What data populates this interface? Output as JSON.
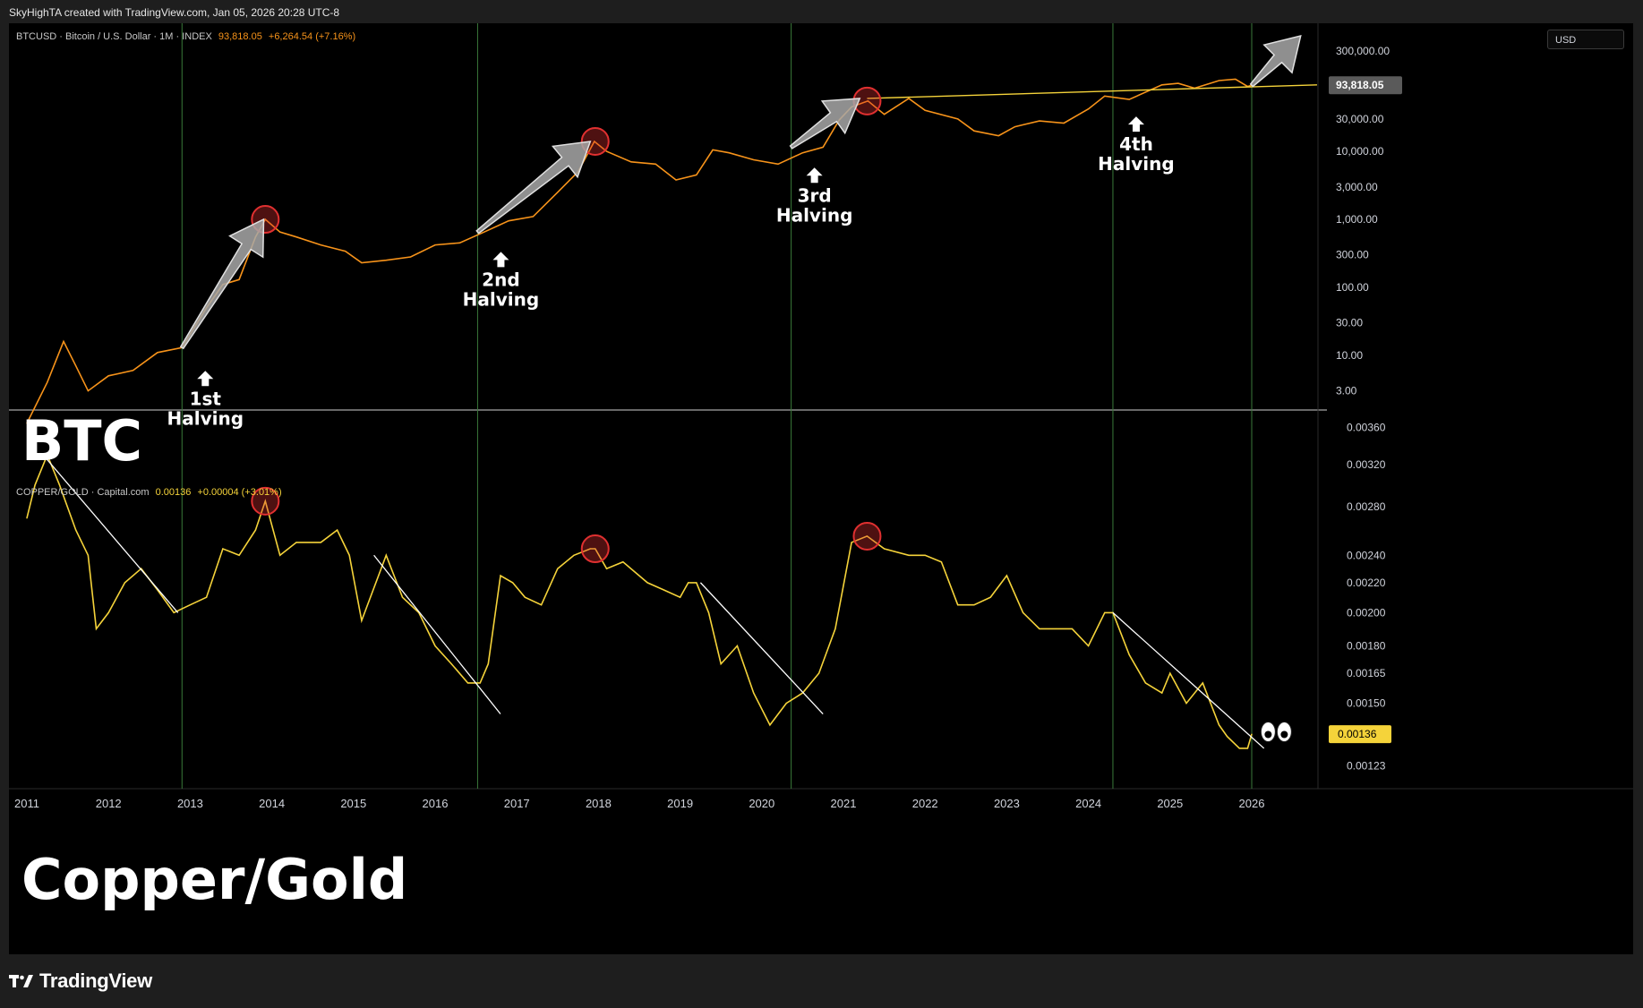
{
  "header": {
    "text": "SkyHighTA created with TradingView.com, Jan 05, 2026 20:28 UTC-8"
  },
  "unit_badge": "USD",
  "footer": {
    "brand": "TradingView"
  },
  "labels": {
    "btc_big": "BTC",
    "cg_big": "Copper/Gold"
  },
  "colors": {
    "background": "#000000",
    "btc_line": "#f7931a",
    "copper_gold_line": "#f5d33a",
    "halving_line": "#3a7a3a",
    "divider": "#cfcfcf",
    "circle": "#e03030"
  },
  "chart_data": [
    {
      "type": "line",
      "legend": {
        "symbol": "BTCUSD · Bitcoin / U.S. Dollar · 1M · INDEX",
        "price": "93,818.05",
        "change": "+6,264.54 (+7.16%)"
      },
      "y_scale": "log",
      "ylim": [
        2,
        600000
      ],
      "y_ticks": [
        "300,000.00",
        "100,000.00",
        "30,000.00",
        "10,000.00",
        "3,000.00",
        "1,000.00",
        "300.00",
        "100.00",
        "30.00",
        "10.00",
        "3.00"
      ],
      "y_tick_values": [
        300000,
        100000,
        30000,
        10000,
        3000,
        1000,
        300,
        100,
        30,
        10,
        3
      ],
      "last_price_label": "93,818.05",
      "series": [
        {
          "x": [
            2011.0,
            2011.25,
            2011.45,
            2011.6,
            2011.75,
            2012.0,
            2012.3,
            2012.6,
            2012.9,
            2013.2,
            2013.4,
            2013.6,
            2013.8,
            2013.92,
            2014.1,
            2014.3,
            2014.6,
            2014.9,
            2015.1,
            2015.4,
            2015.7,
            2016.0,
            2016.3,
            2016.6,
            2016.9,
            2017.2,
            2017.5,
            2017.75,
            2017.95,
            2018.1,
            2018.4,
            2018.7,
            2018.95,
            2019.2,
            2019.4,
            2019.6,
            2019.9,
            2020.2,
            2020.5,
            2020.75,
            2020.95,
            2021.1,
            2021.3,
            2021.5,
            2021.8,
            2022.0,
            2022.4,
            2022.6,
            2022.9,
            2023.1,
            2023.4,
            2023.7,
            2024.0,
            2024.2,
            2024.5,
            2024.9,
            2025.1,
            2025.3,
            2025.6,
            2025.8,
            2025.95,
            2026.0
          ],
          "values": [
            1,
            4,
            16,
            7,
            3,
            5,
            6,
            11,
            13,
            50,
            110,
            130,
            550,
            1000,
            650,
            550,
            420,
            340,
            230,
            250,
            280,
            420,
            450,
            650,
            950,
            1100,
            2500,
            5000,
            14000,
            10000,
            7000,
            6500,
            3800,
            4500,
            10500,
            9500,
            7500,
            6500,
            9500,
            11500,
            29000,
            45000,
            55000,
            35000,
            60000,
            40000,
            30000,
            20000,
            17000,
            23000,
            28000,
            26000,
            42000,
            65000,
            58000,
            95000,
            100000,
            85000,
            110000,
            115000,
            90000,
            93818
          ]
        }
      ],
      "annotations": [
        "1st\nHalving",
        "2nd\nHalving",
        "3rd\nHalving",
        "4th\nHalving"
      ],
      "halving_dates": [
        2012.9,
        2016.52,
        2020.36,
        2024.3
      ],
      "top_circles": [
        2013.92,
        2017.96,
        2021.29
      ],
      "trendline": {
        "x": [
          2021.29,
          2026.8
        ],
        "values": [
          60000,
          95000
        ]
      }
    },
    {
      "type": "line",
      "legend": {
        "symbol": "COPPER/GOLD · Capital.com",
        "price": "0.00136",
        "change": "+0.00004 (+3.01%)"
      },
      "y_scale": "log",
      "ylim": [
        0.00117,
        0.0037
      ],
      "y_ticks": [
        "0.00360",
        "0.00320",
        "0.00280",
        "0.00240",
        "0.00220",
        "0.00200",
        "0.00180",
        "0.00165",
        "0.00150",
        "0.00123"
      ],
      "y_tick_values": [
        0.0036,
        0.0032,
        0.0028,
        0.0024,
        0.0022,
        0.002,
        0.0018,
        0.00165,
        0.0015,
        0.00123
      ],
      "last_price_label": "0.00136",
      "series": [
        {
          "x": [
            2011.0,
            2011.1,
            2011.25,
            2011.4,
            2011.6,
            2011.75,
            2011.85,
            2012.0,
            2012.2,
            2012.4,
            2012.6,
            2012.8,
            2013.0,
            2013.2,
            2013.4,
            2013.6,
            2013.8,
            2013.92,
            2014.1,
            2014.3,
            2014.6,
            2014.8,
            2014.95,
            2015.1,
            2015.4,
            2015.6,
            2015.8,
            2016.0,
            2016.2,
            2016.4,
            2016.55,
            2016.65,
            2016.8,
            2016.95,
            2017.1,
            2017.3,
            2017.5,
            2017.7,
            2017.9,
            2017.96,
            2018.1,
            2018.3,
            2018.6,
            2018.8,
            2019.0,
            2019.1,
            2019.2,
            2019.35,
            2019.5,
            2019.7,
            2019.9,
            2020.1,
            2020.3,
            2020.5,
            2020.7,
            2020.9,
            2021.1,
            2021.29,
            2021.5,
            2021.8,
            2022.0,
            2022.2,
            2022.4,
            2022.6,
            2022.8,
            2023.0,
            2023.2,
            2023.4,
            2023.6,
            2023.8,
            2024.0,
            2024.2,
            2024.3,
            2024.5,
            2024.7,
            2024.9,
            2025.0,
            2025.2,
            2025.4,
            2025.6,
            2025.7,
            2025.85,
            2025.95,
            2026.0
          ],
          "values": [
            0.0027,
            0.003,
            0.0033,
            0.003,
            0.0026,
            0.0024,
            0.0019,
            0.002,
            0.0022,
            0.0023,
            0.00215,
            0.002,
            0.00205,
            0.0021,
            0.00245,
            0.0024,
            0.0026,
            0.00285,
            0.0024,
            0.0025,
            0.0025,
            0.0026,
            0.0024,
            0.00195,
            0.0024,
            0.0021,
            0.002,
            0.0018,
            0.0017,
            0.0016,
            0.0016,
            0.0017,
            0.00225,
            0.0022,
            0.0021,
            0.00205,
            0.0023,
            0.0024,
            0.00245,
            0.00245,
            0.0023,
            0.00235,
            0.0022,
            0.00215,
            0.0021,
            0.0022,
            0.0022,
            0.002,
            0.0017,
            0.0018,
            0.00155,
            0.0014,
            0.0015,
            0.00155,
            0.00165,
            0.0019,
            0.0025,
            0.00255,
            0.00245,
            0.0024,
            0.0024,
            0.00235,
            0.00205,
            0.00205,
            0.0021,
            0.00225,
            0.002,
            0.0019,
            0.0019,
            0.0019,
            0.0018,
            0.002,
            0.002,
            0.00175,
            0.0016,
            0.00155,
            0.00165,
            0.0015,
            0.0016,
            0.0014,
            0.00135,
            0.0013,
            0.0013,
            0.00136
          ]
        }
      ],
      "top_circles": [
        2013.92,
        2017.96,
        2021.29
      ],
      "trendlines": [
        {
          "x": [
            2011.2,
            2012.85
          ],
          "values": [
            0.0033,
            0.002
          ]
        },
        {
          "x": [
            2015.25,
            2016.8
          ],
          "values": [
            0.0024,
            0.00145
          ]
        },
        {
          "x": [
            2019.25,
            2020.75
          ],
          "values": [
            0.0022,
            0.00145
          ]
        },
        {
          "x": [
            2024.3,
            2026.15
          ],
          "values": [
            0.002,
            0.0013
          ]
        }
      ]
    }
  ],
  "x_axis": {
    "years": [
      "2011",
      "2012",
      "2013",
      "2014",
      "2015",
      "2016",
      "2017",
      "2018",
      "2019",
      "2020",
      "2021",
      "2022",
      "2023",
      "2024",
      "2025",
      "2026"
    ]
  }
}
